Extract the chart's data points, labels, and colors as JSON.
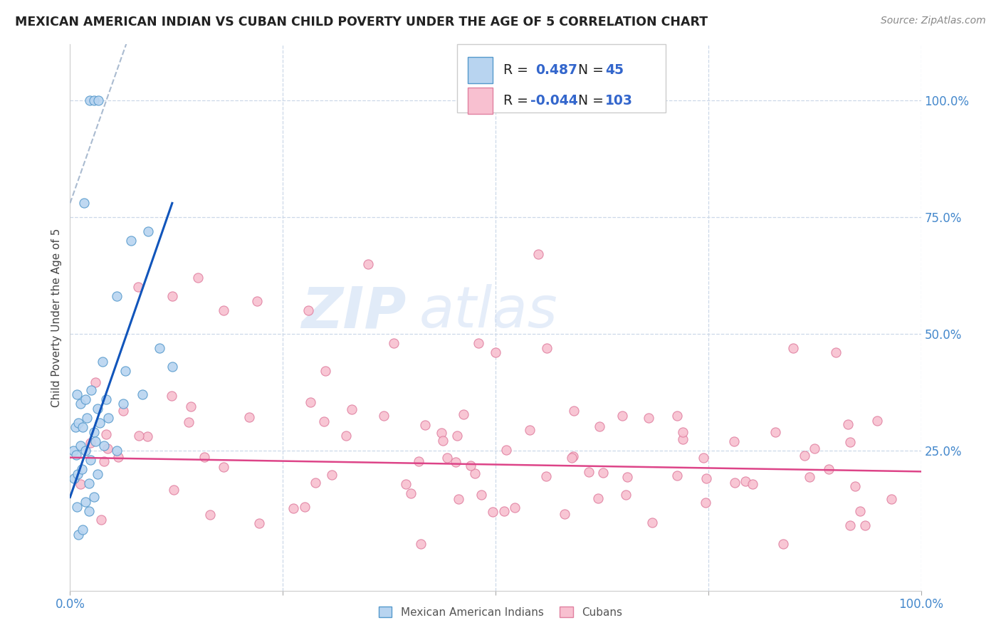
{
  "title": "MEXICAN AMERICAN INDIAN VS CUBAN CHILD POVERTY UNDER THE AGE OF 5 CORRELATION CHART",
  "source": "Source: ZipAtlas.com",
  "ylabel": "Child Poverty Under the Age of 5",
  "watermark_zip": "ZIP",
  "watermark_atlas": "atlas",
  "blue_N": 45,
  "pink_N": 103,
  "blue_scatter_face": "#b8d4f0",
  "blue_scatter_edge": "#5599cc",
  "pink_scatter_face": "#f8c0d0",
  "pink_scatter_edge": "#e080a0",
  "trend_blue": "#1155bb",
  "trend_pink": "#dd4488",
  "trend_dashed_color": "#aabbd0",
  "background": "#ffffff",
  "grid_color": "#ccd8e8",
  "title_color": "#222222",
  "source_color": "#888888",
  "axis_tick_color": "#4488cc",
  "ylabel_color": "#444444",
  "legend_r_color": "#222222",
  "legend_val_color": "#3366cc",
  "watermark_color_zip": "#b8cce8",
  "watermark_color_atlas": "#c8d8f0"
}
